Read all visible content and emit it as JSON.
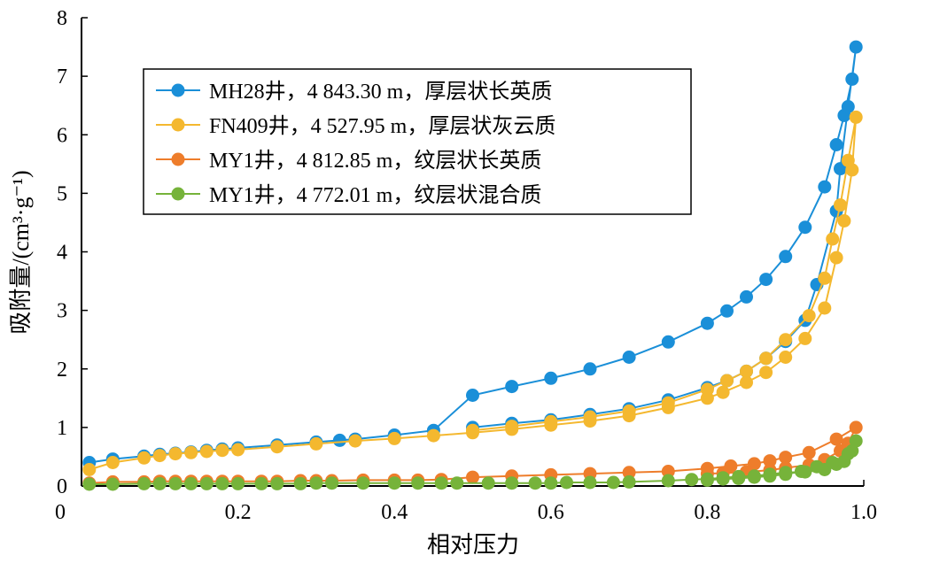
{
  "chart_data": {
    "type": "scatter",
    "xlabel": "相对压力",
    "ylabel": "吸附量/(cm³·g⁻¹)",
    "xlim": [
      0,
      1.0
    ],
    "ylim": [
      0,
      8
    ],
    "xticks": [
      "0",
      "0.2",
      "0.4",
      "0.6",
      "0.8",
      "1.0"
    ],
    "yticks": [
      "0",
      "1",
      "2",
      "3",
      "4",
      "5",
      "6",
      "7",
      "8"
    ],
    "legend_position": "top-left",
    "grid": false,
    "series": [
      {
        "name": "MH28井，4 843.30 m，厚层状长英质",
        "color": "#1a8fd8",
        "points": [
          [
            0.01,
            0.4
          ],
          [
            0.04,
            0.46
          ],
          [
            0.08,
            0.51
          ],
          [
            0.1,
            0.54
          ],
          [
            0.12,
            0.56
          ],
          [
            0.14,
            0.58
          ],
          [
            0.16,
            0.61
          ],
          [
            0.18,
            0.63
          ],
          [
            0.2,
            0.65
          ],
          [
            0.25,
            0.7
          ],
          [
            0.3,
            0.75
          ],
          [
            0.33,
            0.78
          ],
          [
            0.35,
            0.8
          ],
          [
            0.4,
            0.87
          ],
          [
            0.45,
            0.95
          ],
          [
            0.5,
            1.55
          ],
          [
            0.55,
            1.7
          ],
          [
            0.6,
            1.84
          ],
          [
            0.65,
            2.0
          ],
          [
            0.7,
            2.2
          ],
          [
            0.75,
            2.46
          ],
          [
            0.8,
            2.78
          ],
          [
            0.825,
            2.99
          ],
          [
            0.85,
            3.23
          ],
          [
            0.875,
            3.53
          ],
          [
            0.9,
            3.92
          ],
          [
            0.925,
            4.42
          ],
          [
            0.95,
            5.11
          ],
          [
            0.965,
            5.83
          ],
          [
            0.975,
            6.33
          ],
          [
            0.985,
            6.95
          ],
          [
            0.99,
            7.5
          ],
          [
            0.98,
            6.48
          ],
          [
            0.97,
            5.42
          ],
          [
            0.965,
            4.7
          ],
          [
            0.94,
            3.44
          ],
          [
            0.925,
            2.83
          ],
          [
            0.9,
            2.47
          ],
          [
            0.875,
            2.18
          ],
          [
            0.85,
            1.96
          ],
          [
            0.825,
            1.8
          ],
          [
            0.8,
            1.68
          ],
          [
            0.75,
            1.47
          ],
          [
            0.7,
            1.32
          ],
          [
            0.65,
            1.22
          ],
          [
            0.6,
            1.13
          ],
          [
            0.55,
            1.07
          ],
          [
            0.5,
            1.0
          ]
        ]
      },
      {
        "name": "FN409井，4 527.95 m，厚层状灰云质",
        "color": "#f4b82f",
        "points": [
          [
            0.01,
            0.28
          ],
          [
            0.04,
            0.4
          ],
          [
            0.08,
            0.48
          ],
          [
            0.1,
            0.52
          ],
          [
            0.12,
            0.55
          ],
          [
            0.14,
            0.57
          ],
          [
            0.16,
            0.59
          ],
          [
            0.18,
            0.61
          ],
          [
            0.2,
            0.62
          ],
          [
            0.25,
            0.67
          ],
          [
            0.3,
            0.72
          ],
          [
            0.35,
            0.77
          ],
          [
            0.4,
            0.81
          ],
          [
            0.45,
            0.86
          ],
          [
            0.5,
            0.91
          ],
          [
            0.55,
            0.97
          ],
          [
            0.6,
            1.04
          ],
          [
            0.65,
            1.11
          ],
          [
            0.7,
            1.2
          ],
          [
            0.75,
            1.34
          ],
          [
            0.8,
            1.5
          ],
          [
            0.82,
            1.6
          ],
          [
            0.85,
            1.77
          ],
          [
            0.875,
            1.94
          ],
          [
            0.9,
            2.2
          ],
          [
            0.925,
            2.52
          ],
          [
            0.95,
            3.04
          ],
          [
            0.965,
            3.9
          ],
          [
            0.975,
            4.53
          ],
          [
            0.985,
            5.4
          ],
          [
            0.99,
            6.3
          ],
          [
            0.98,
            5.56
          ],
          [
            0.97,
            4.8
          ],
          [
            0.96,
            4.22
          ],
          [
            0.95,
            3.55
          ],
          [
            0.93,
            2.91
          ],
          [
            0.9,
            2.5
          ],
          [
            0.875,
            2.18
          ],
          [
            0.85,
            1.96
          ],
          [
            0.825,
            1.8
          ],
          [
            0.8,
            1.65
          ],
          [
            0.75,
            1.42
          ],
          [
            0.7,
            1.28
          ],
          [
            0.65,
            1.18
          ],
          [
            0.6,
            1.1
          ],
          [
            0.55,
            1.02
          ],
          [
            0.5,
            0.95
          ]
        ]
      },
      {
        "name": "MY1井，4 812.85 m，纹层状长英质",
        "color": "#ee7d2b",
        "points": [
          [
            0.01,
            0.05
          ],
          [
            0.04,
            0.07
          ],
          [
            0.08,
            0.07
          ],
          [
            0.1,
            0.08
          ],
          [
            0.12,
            0.08
          ],
          [
            0.14,
            0.08
          ],
          [
            0.16,
            0.08
          ],
          [
            0.18,
            0.08
          ],
          [
            0.2,
            0.08
          ],
          [
            0.23,
            0.08
          ],
          [
            0.25,
            0.08
          ],
          [
            0.28,
            0.09
          ],
          [
            0.3,
            0.09
          ],
          [
            0.32,
            0.09
          ],
          [
            0.36,
            0.1
          ],
          [
            0.4,
            0.1
          ],
          [
            0.43,
            0.1
          ],
          [
            0.46,
            0.11
          ],
          [
            0.5,
            0.15
          ],
          [
            0.55,
            0.17
          ],
          [
            0.6,
            0.19
          ],
          [
            0.65,
            0.21
          ],
          [
            0.7,
            0.23
          ],
          [
            0.75,
            0.25
          ],
          [
            0.8,
            0.3
          ],
          [
            0.83,
            0.34
          ],
          [
            0.86,
            0.38
          ],
          [
            0.88,
            0.43
          ],
          [
            0.9,
            0.49
          ],
          [
            0.93,
            0.57
          ],
          [
            0.965,
            0.8
          ],
          [
            0.99,
            1.0
          ],
          [
            0.98,
            0.73
          ],
          [
            0.97,
            0.6
          ],
          [
            0.95,
            0.45
          ],
          [
            0.93,
            0.36
          ],
          [
            0.9,
            0.31
          ],
          [
            0.88,
            0.27
          ],
          [
            0.85,
            0.24
          ],
          [
            0.82,
            0.22
          ],
          [
            0.8,
            0.21
          ]
        ]
      },
      {
        "name": "MY1井，4 772.01 m，纹层状混合质",
        "color": "#76b33a",
        "points": [
          [
            0.01,
            0.03
          ],
          [
            0.04,
            0.03
          ],
          [
            0.08,
            0.04
          ],
          [
            0.1,
            0.04
          ],
          [
            0.12,
            0.04
          ],
          [
            0.14,
            0.04
          ],
          [
            0.16,
            0.04
          ],
          [
            0.18,
            0.04
          ],
          [
            0.2,
            0.04
          ],
          [
            0.23,
            0.04
          ],
          [
            0.25,
            0.04
          ],
          [
            0.28,
            0.04
          ],
          [
            0.3,
            0.05
          ],
          [
            0.32,
            0.05
          ],
          [
            0.36,
            0.05
          ],
          [
            0.4,
            0.05
          ],
          [
            0.43,
            0.05
          ],
          [
            0.46,
            0.05
          ],
          [
            0.48,
            0.05
          ],
          [
            0.52,
            0.05
          ],
          [
            0.55,
            0.05
          ],
          [
            0.58,
            0.05
          ],
          [
            0.6,
            0.05
          ],
          [
            0.62,
            0.06
          ],
          [
            0.65,
            0.06
          ],
          [
            0.68,
            0.06
          ],
          [
            0.7,
            0.07
          ],
          [
            0.75,
            0.09
          ],
          [
            0.78,
            0.11
          ],
          [
            0.8,
            0.12
          ],
          [
            0.82,
            0.14
          ],
          [
            0.84,
            0.16
          ],
          [
            0.86,
            0.17
          ],
          [
            0.88,
            0.2
          ],
          [
            0.9,
            0.23
          ],
          [
            0.925,
            0.24
          ],
          [
            0.95,
            0.28
          ],
          [
            0.965,
            0.37
          ],
          [
            0.975,
            0.42
          ],
          [
            0.985,
            0.6
          ],
          [
            0.99,
            0.77
          ],
          [
            0.98,
            0.55
          ],
          [
            0.96,
            0.4
          ],
          [
            0.94,
            0.33
          ],
          [
            0.92,
            0.25
          ],
          [
            0.9,
            0.2
          ],
          [
            0.88,
            0.17
          ],
          [
            0.86,
            0.15
          ],
          [
            0.84,
            0.13
          ],
          [
            0.82,
            0.12
          ],
          [
            0.8,
            0.1
          ]
        ]
      }
    ]
  }
}
